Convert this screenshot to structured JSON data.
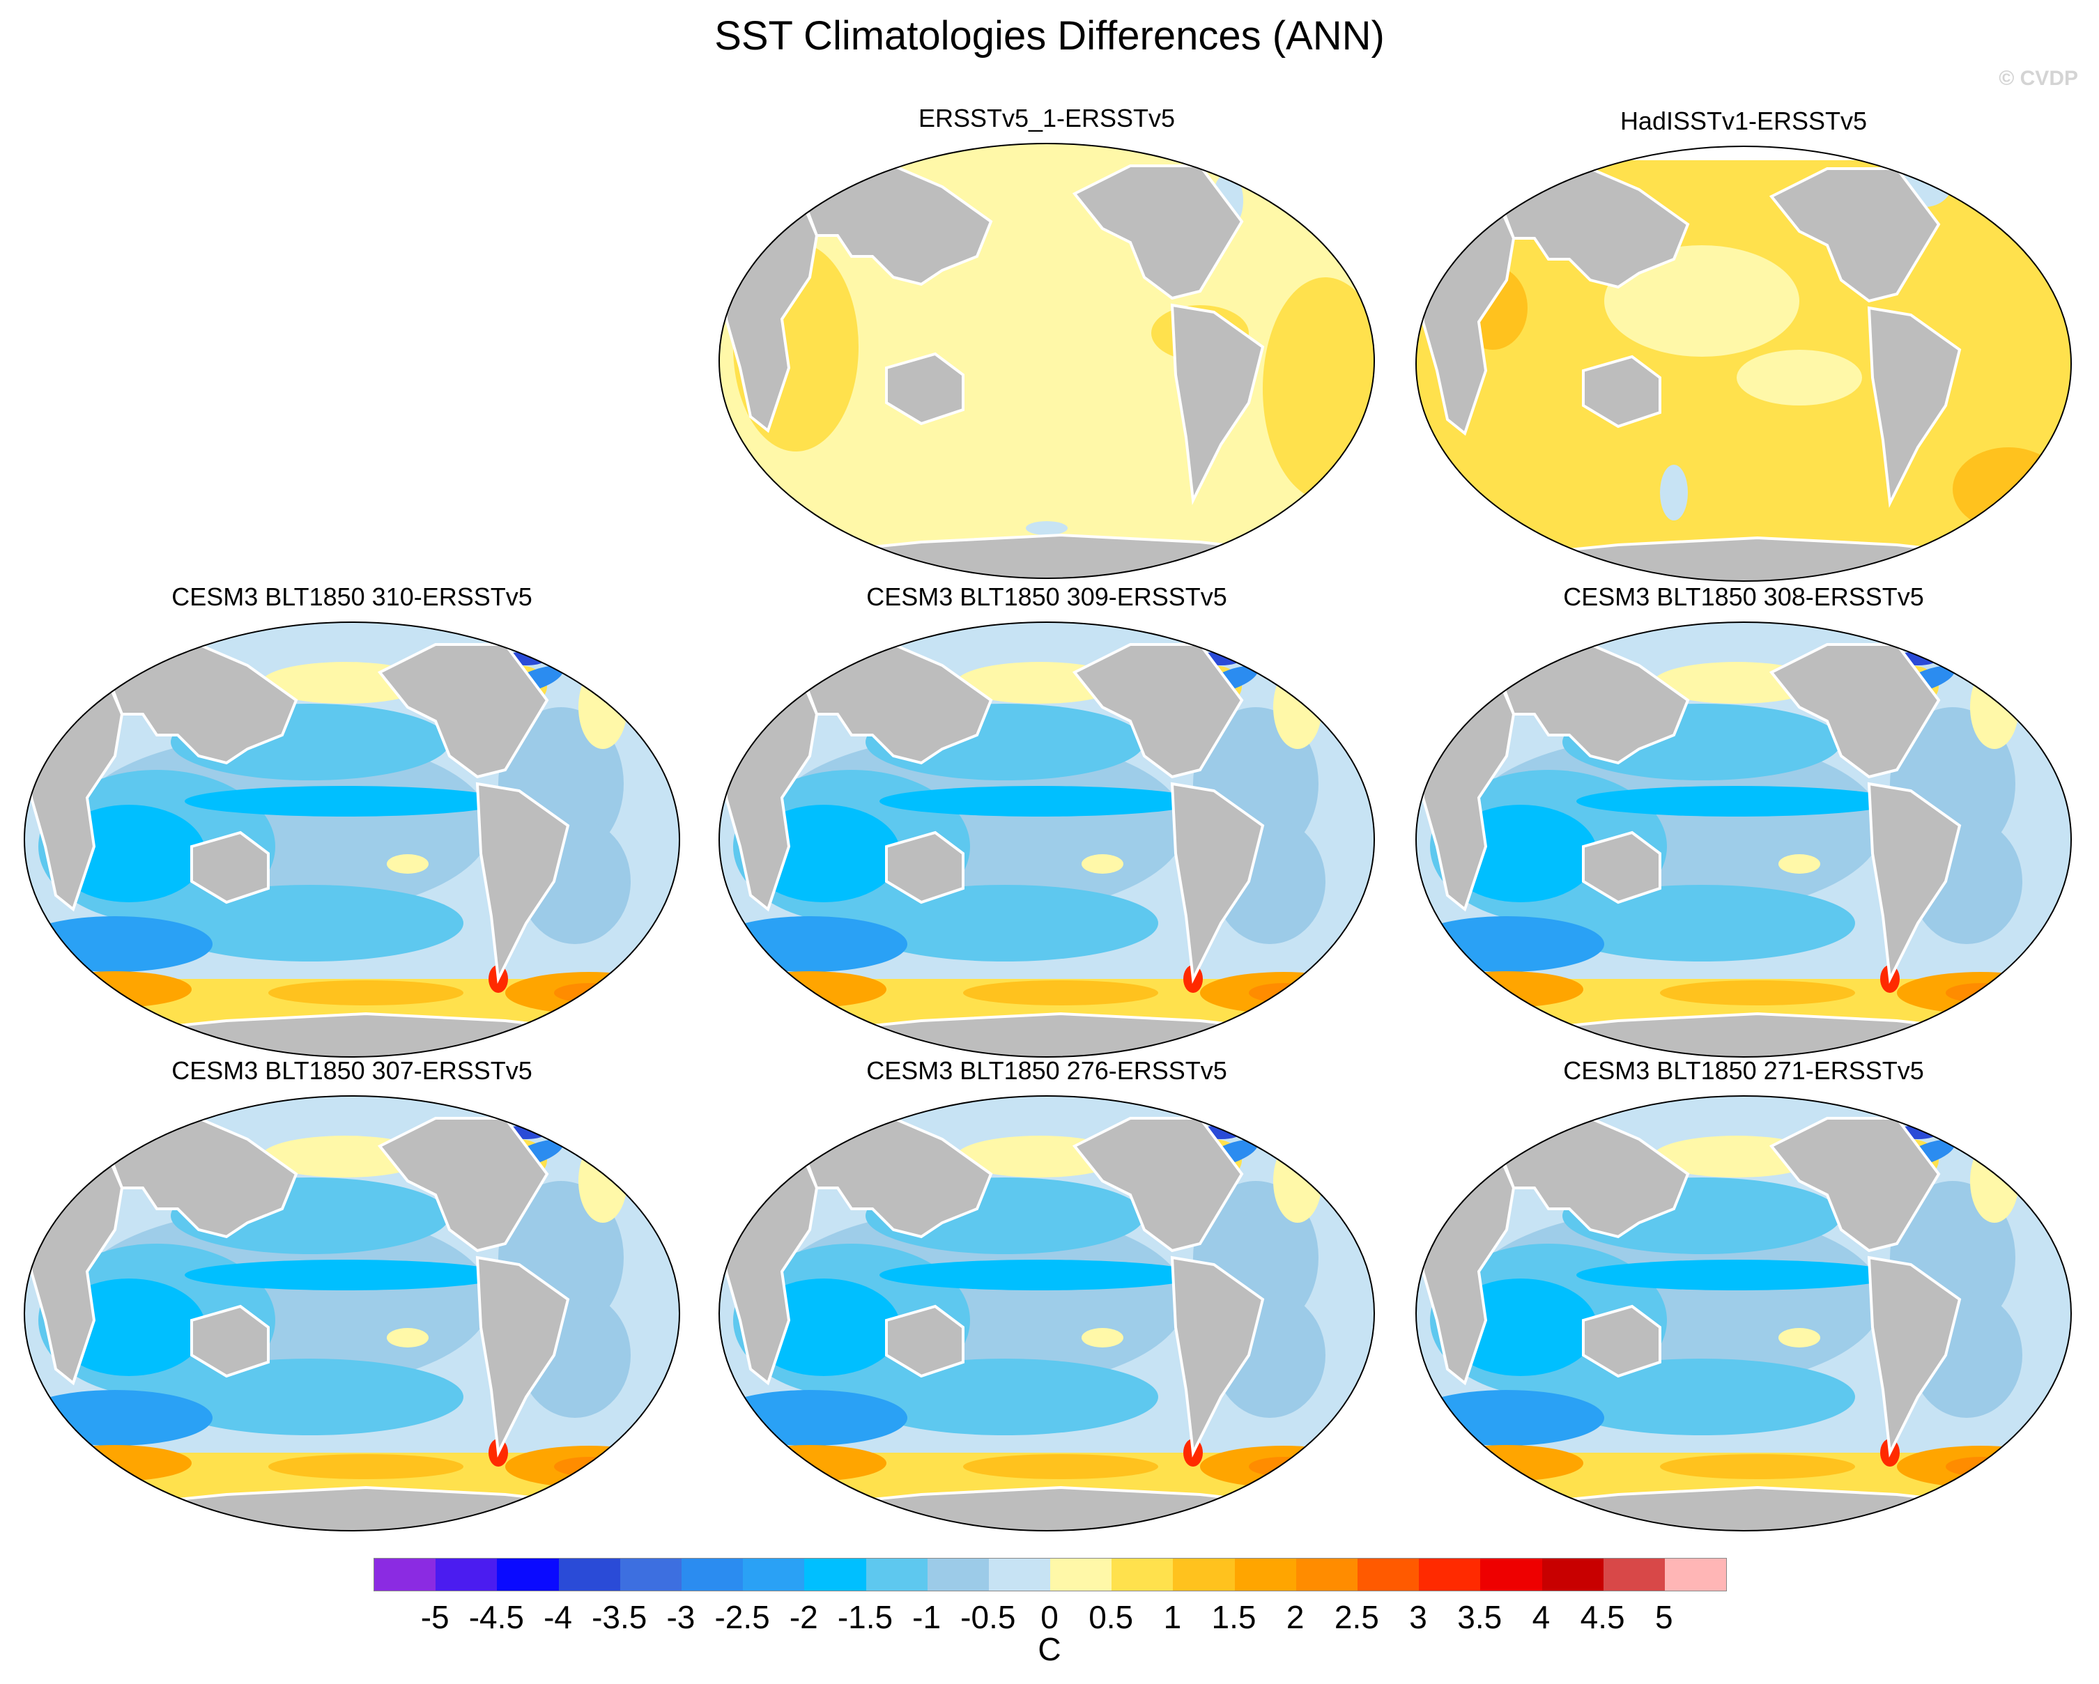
{
  "title": "SST Climatologies Differences (ANN)",
  "watermark": "© CVDP",
  "panels": [
    {
      "title": "ERSSTv5_1-ERSSTv5",
      "pattern": "obs_small"
    },
    {
      "title": "HadISSTv1-ERSSTv5",
      "pattern": "obs_warm"
    },
    {
      "title": "CESM3 BLT1850 310-ERSSTv5",
      "pattern": "model"
    },
    {
      "title": "CESM3 BLT1850 309-ERSSTv5",
      "pattern": "model"
    },
    {
      "title": "CESM3 BLT1850 308-ERSSTv5",
      "pattern": "model"
    },
    {
      "title": "CESM3 BLT1850 307-ERSSTv5",
      "pattern": "model"
    },
    {
      "title": "CESM3 BLT1850 276-ERSSTv5",
      "pattern": "model"
    },
    {
      "title": "CESM3 BLT1850 271-ERSSTv5",
      "pattern": "model"
    }
  ],
  "colorbar": {
    "unit": "C",
    "labels": [
      "-5",
      "-4.5",
      "-4",
      "-3.5",
      "-3",
      "-2.5",
      "-2",
      "-1.5",
      "-1",
      "-0.5",
      "0",
      "0.5",
      "1",
      "1.5",
      "2",
      "2.5",
      "3",
      "3.5",
      "4",
      "4.5",
      "5"
    ],
    "colors": [
      "#8b2be2",
      "#4b1cf0",
      "#0a0aff",
      "#2a4bd7",
      "#3d6fe0",
      "#2b8cf0",
      "#2aa1f5",
      "#00bfff",
      "#5ec8ef",
      "#9ccbe8",
      "#c7e3f4",
      "#fff8a8",
      "#ffe14d",
      "#ffc21e",
      "#ffa500",
      "#ff8c00",
      "#ff5a00",
      "#ff2a00",
      "#ee0000",
      "#c80000",
      "#d84848",
      "#ffb6b6"
    ]
  },
  "colors": {
    "land": "#bdbdbd",
    "coast": "#ffffff",
    "outline": "#000000"
  }
}
